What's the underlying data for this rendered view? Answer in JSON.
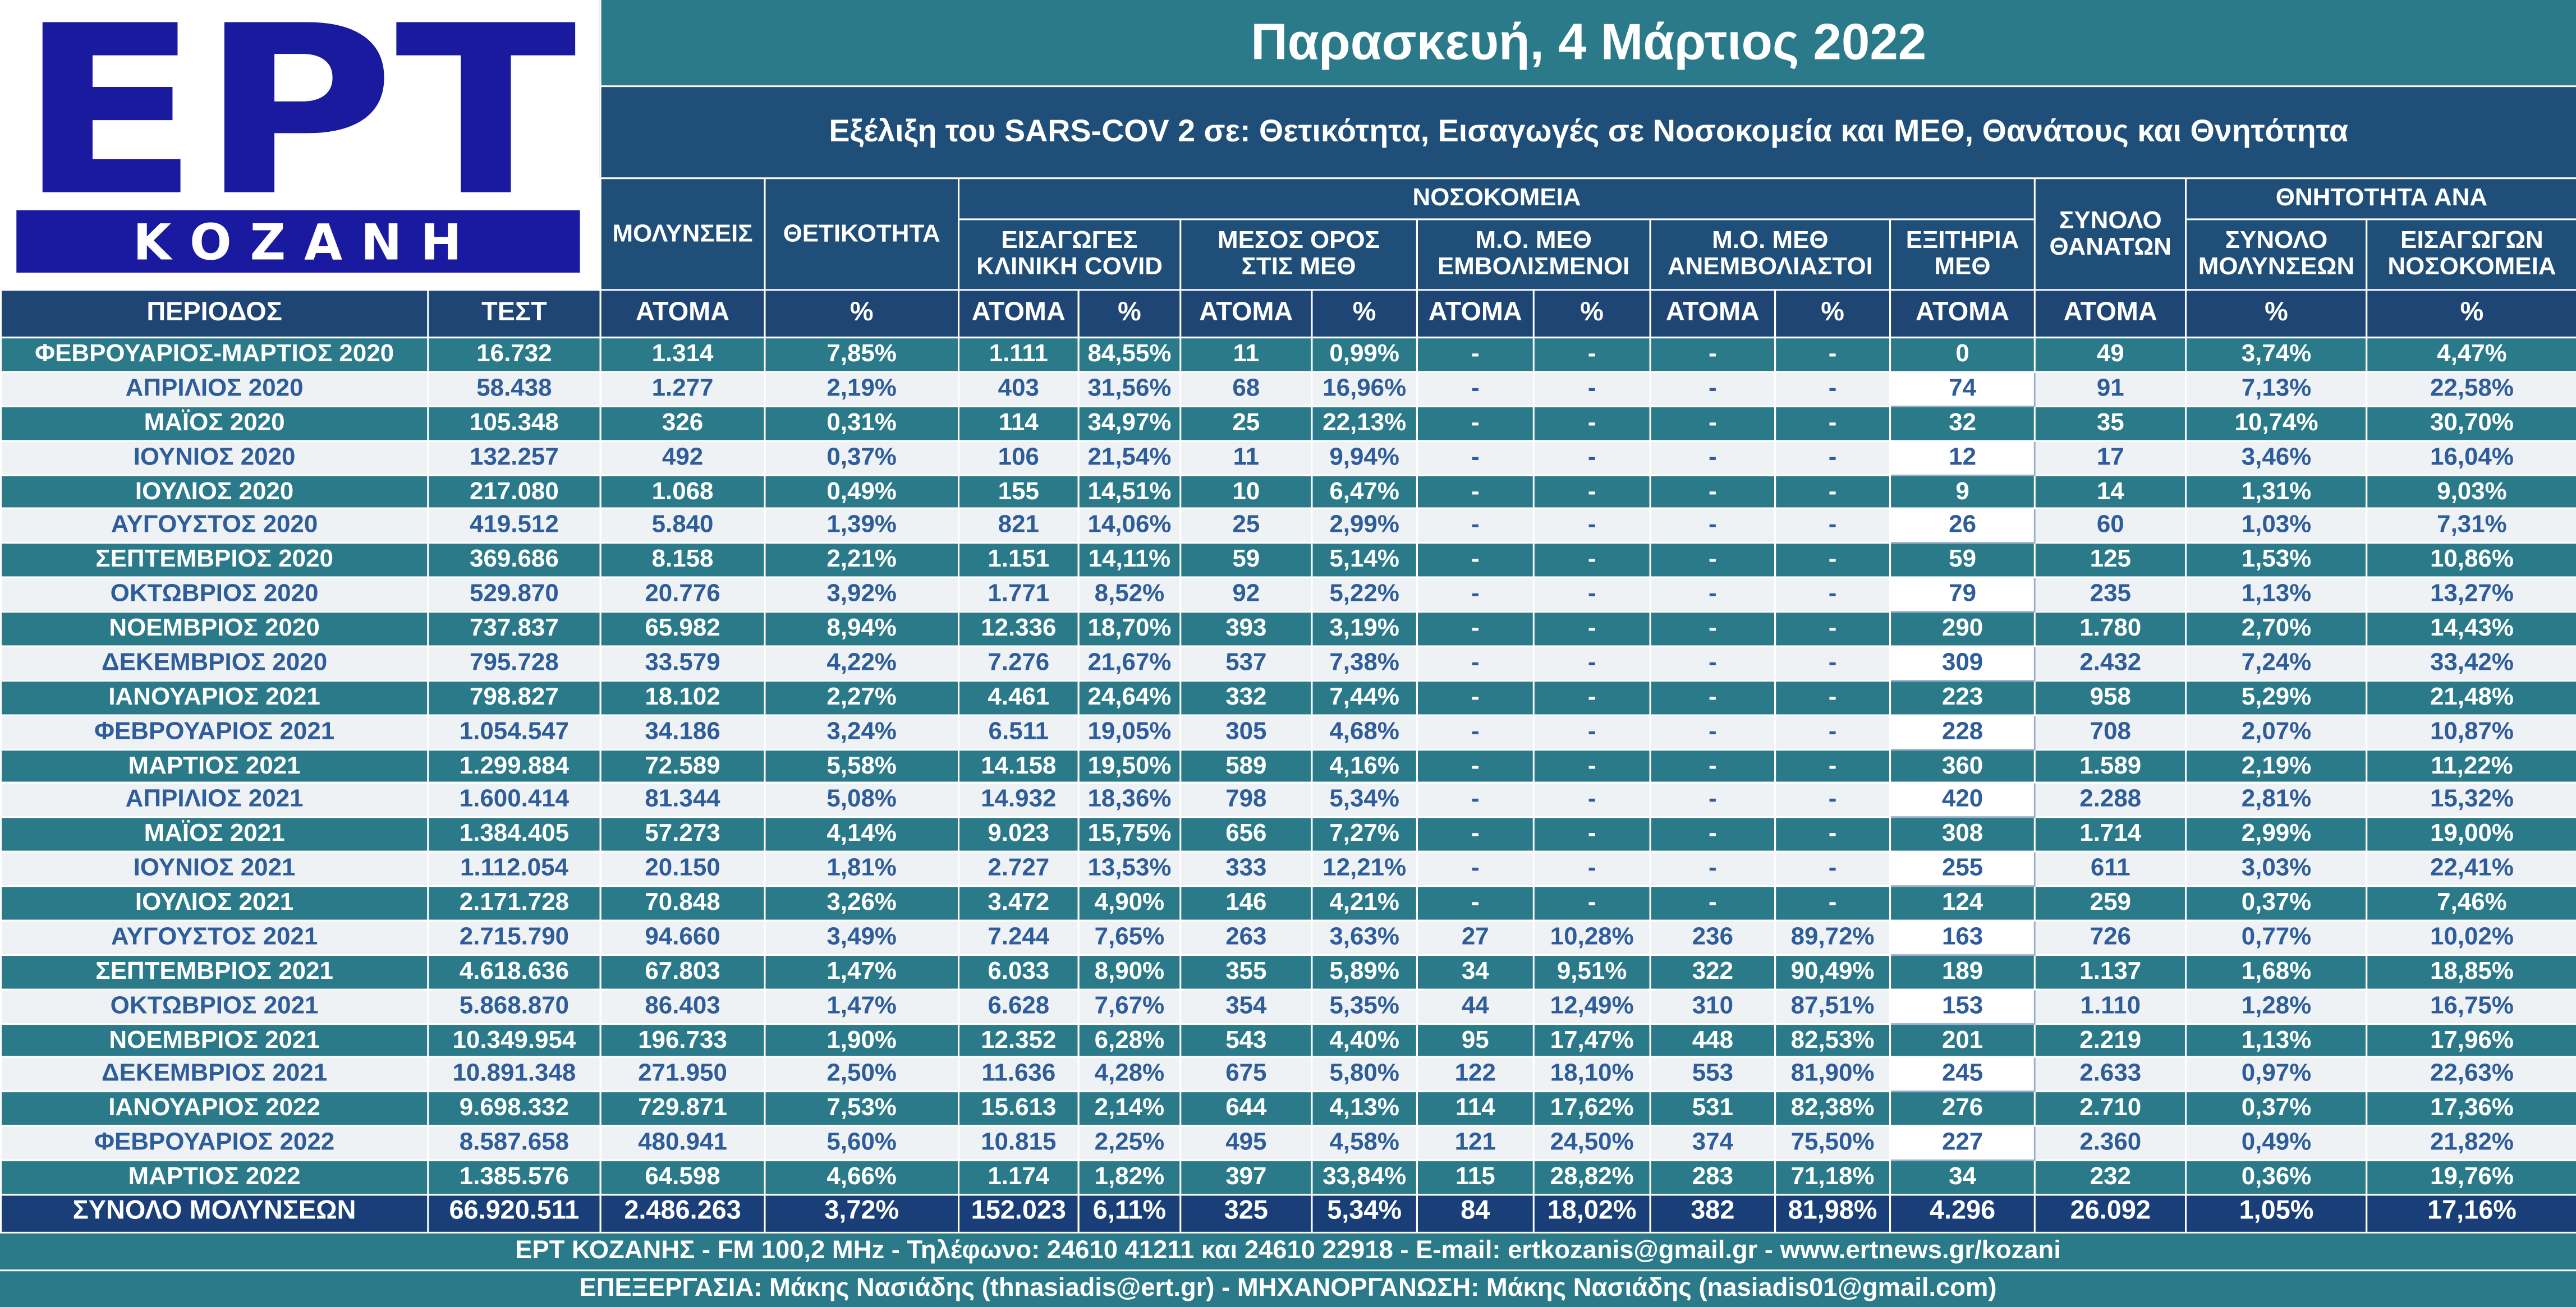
{
  "logo": {
    "name": "ΕΡΤ",
    "city": "ΚΟΖΑΝΗ"
  },
  "header": {
    "title": "Παρασκευή, 4 Μάρτιος 2022",
    "subtitle": "Εξέλιξη του SARS-COV 2 σε: Θετικότητα, Εισαγωγές σε Νοσοκομεία και ΜΕΘ, Θανάτους και Θνητότητα"
  },
  "table": {
    "group_row": [
      [
        "ΜΟΛΥΝΣΕΙΣ"
      ],
      [
        "ΘΕΤΙΚΟΤΗΤΑ"
      ],
      [
        "ΝΟΣΟΚΟΜΕΙΑ"
      ],
      [
        "ΣΥΝΟΛΟ",
        "ΘΑΝΑΤΩΝ"
      ],
      [
        "ΘΝΗΤΟΤΗΤΑ ΑΝΑ"
      ]
    ],
    "sub_row": [
      [
        "ΕΙΣΑΓΩΓΕΣ",
        "ΚΛΙΝΙΚΗ COVID"
      ],
      [
        "ΜΕΣΟΣ ΟΡΟΣ",
        "ΣΤΙΣ ΜΕΘ"
      ],
      [
        "Μ.Ο. ΜΕΘ",
        "ΕΜΒΟΛΙΣΜΕΝΟΙ"
      ],
      [
        "Μ.Ο. ΜΕΘ",
        "ΑΝΕΜΒΟΛΙΑΣΤΟΙ"
      ],
      [
        "ΕΞΙΤΗΡΙΑ",
        "ΜΕΘ"
      ],
      [
        "ΣΥΝΟΛΟ",
        "ΜΟΛΥΝΣΕΩΝ"
      ],
      [
        "ΕΙΣΑΓΩΓΩΝ",
        "ΝΟΣΟΚΟΜΕΙΑ"
      ]
    ],
    "columns": [
      "ΠΕΡΙΟΔΟΣ",
      "ΤΕΣΤ",
      "ΑΤΟΜΑ",
      "%",
      "ΑΤΟΜΑ",
      "%",
      "ΑΤΟΜΑ",
      "%",
      "ΑΤΟΜΑ",
      "%",
      "ΑΤΟΜΑ",
      "%",
      "ΑΤΟΜΑ",
      "ΑΤΟΜΑ",
      "%",
      "%"
    ],
    "rows": [
      [
        "ΦΕΒΡΟΥΑΡΙΟΣ-ΜΑΡΤΙΟΣ 2020",
        "16.732",
        "1.314",
        "7,85%",
        "1.111",
        "84,55%",
        "11",
        "0,99%",
        "-",
        "-",
        "-",
        "-",
        "0",
        "49",
        "3,74%",
        "4,47%"
      ],
      [
        "ΑΠΡΙΛΙΟΣ 2020",
        "58.438",
        "1.277",
        "2,19%",
        "403",
        "31,56%",
        "68",
        "16,96%",
        "-",
        "-",
        "-",
        "-",
        "74",
        "91",
        "7,13%",
        "22,58%"
      ],
      [
        "ΜΑΪΟΣ 2020",
        "105.348",
        "326",
        "0,31%",
        "114",
        "34,97%",
        "25",
        "22,13%",
        "-",
        "-",
        "-",
        "-",
        "32",
        "35",
        "10,74%",
        "30,70%"
      ],
      [
        "ΙΟΥΝΙΟΣ 2020",
        "132.257",
        "492",
        "0,37%",
        "106",
        "21,54%",
        "11",
        "9,94%",
        "-",
        "-",
        "-",
        "-",
        "12",
        "17",
        "3,46%",
        "16,04%"
      ],
      [
        "ΙΟΥΛΙΟΣ 2020",
        "217.080",
        "1.068",
        "0,49%",
        "155",
        "14,51%",
        "10",
        "6,47%",
        "-",
        "-",
        "-",
        "-",
        "9",
        "14",
        "1,31%",
        "9,03%"
      ],
      [
        "ΑΥΓΟΥΣΤΟΣ 2020",
        "419.512",
        "5.840",
        "1,39%",
        "821",
        "14,06%",
        "25",
        "2,99%",
        "-",
        "-",
        "-",
        "-",
        "26",
        "60",
        "1,03%",
        "7,31%"
      ],
      [
        "ΣΕΠΤΕΜΒΡΙΟΣ 2020",
        "369.686",
        "8.158",
        "2,21%",
        "1.151",
        "14,11%",
        "59",
        "5,14%",
        "-",
        "-",
        "-",
        "-",
        "59",
        "125",
        "1,53%",
        "10,86%"
      ],
      [
        "ΟΚΤΩΒΡΙΟΣ 2020",
        "529.870",
        "20.776",
        "3,92%",
        "1.771",
        "8,52%",
        "92",
        "5,22%",
        "-",
        "-",
        "-",
        "-",
        "79",
        "235",
        "1,13%",
        "13,27%"
      ],
      [
        "ΝΟΕΜΒΡΙΟΣ 2020",
        "737.837",
        "65.982",
        "8,94%",
        "12.336",
        "18,70%",
        "393",
        "3,19%",
        "-",
        "-",
        "-",
        "-",
        "290",
        "1.780",
        "2,70%",
        "14,43%"
      ],
      [
        "ΔΕΚΕΜΒΡΙΟΣ 2020",
        "795.728",
        "33.579",
        "4,22%",
        "7.276",
        "21,67%",
        "537",
        "7,38%",
        "-",
        "-",
        "-",
        "-",
        "309",
        "2.432",
        "7,24%",
        "33,42%"
      ],
      [
        "ΙΑΝΟΥΑΡΙΟΣ 2021",
        "798.827",
        "18.102",
        "2,27%",
        "4.461",
        "24,64%",
        "332",
        "7,44%",
        "-",
        "-",
        "-",
        "-",
        "223",
        "958",
        "5,29%",
        "21,48%"
      ],
      [
        "ΦΕΒΡΟΥΑΡΙΟΣ 2021",
        "1.054.547",
        "34.186",
        "3,24%",
        "6.511",
        "19,05%",
        "305",
        "4,68%",
        "-",
        "-",
        "-",
        "-",
        "228",
        "708",
        "2,07%",
        "10,87%"
      ],
      [
        "ΜΑΡΤΙΟΣ 2021",
        "1.299.884",
        "72.589",
        "5,58%",
        "14.158",
        "19,50%",
        "589",
        "4,16%",
        "-",
        "-",
        "-",
        "-",
        "360",
        "1.589",
        "2,19%",
        "11,22%"
      ],
      [
        "ΑΠΡΙΛΙΟΣ 2021",
        "1.600.414",
        "81.344",
        "5,08%",
        "14.932",
        "18,36%",
        "798",
        "5,34%",
        "-",
        "-",
        "-",
        "-",
        "420",
        "2.288",
        "2,81%",
        "15,32%"
      ],
      [
        "ΜΑΪΟΣ 2021",
        "1.384.405",
        "57.273",
        "4,14%",
        "9.023",
        "15,75%",
        "656",
        "7,27%",
        "-",
        "-",
        "-",
        "-",
        "308",
        "1.714",
        "2,99%",
        "19,00%"
      ],
      [
        "ΙΟΥΝΙΟΣ 2021",
        "1.112.054",
        "20.150",
        "1,81%",
        "2.727",
        "13,53%",
        "333",
        "12,21%",
        "-",
        "-",
        "-",
        "-",
        "255",
        "611",
        "3,03%",
        "22,41%"
      ],
      [
        "ΙΟΥΛΙΟΣ 2021",
        "2.171.728",
        "70.848",
        "3,26%",
        "3.472",
        "4,90%",
        "146",
        "4,21%",
        "-",
        "-",
        "-",
        "-",
        "124",
        "259",
        "0,37%",
        "7,46%"
      ],
      [
        "ΑΥΓΟΥΣΤΟΣ 2021",
        "2.715.790",
        "94.660",
        "3,49%",
        "7.244",
        "7,65%",
        "263",
        "3,63%",
        "27",
        "10,28%",
        "236",
        "89,72%",
        "163",
        "726",
        "0,77%",
        "10,02%"
      ],
      [
        "ΣΕΠΤΕΜΒΡΙΟΣ 2021",
        "4.618.636",
        "67.803",
        "1,47%",
        "6.033",
        "8,90%",
        "355",
        "5,89%",
        "34",
        "9,51%",
        "322",
        "90,49%",
        "189",
        "1.137",
        "1,68%",
        "18,85%"
      ],
      [
        "ΟΚΤΩΒΡΙΟΣ 2021",
        "5.868.870",
        "86.403",
        "1,47%",
        "6.628",
        "7,67%",
        "354",
        "5,35%",
        "44",
        "12,49%",
        "310",
        "87,51%",
        "153",
        "1.110",
        "1,28%",
        "16,75%"
      ],
      [
        "ΝΟΕΜΒΡΙΟΣ 2021",
        "10.349.954",
        "196.733",
        "1,90%",
        "12.352",
        "6,28%",
        "543",
        "4,40%",
        "95",
        "17,47%",
        "448",
        "82,53%",
        "201",
        "2.219",
        "1,13%",
        "17,96%"
      ],
      [
        "ΔΕΚΕΜΒΡΙΟΣ 2021",
        "10.891.348",
        "271.950",
        "2,50%",
        "11.636",
        "4,28%",
        "675",
        "5,80%",
        "122",
        "18,10%",
        "553",
        "81,90%",
        "245",
        "2.633",
        "0,97%",
        "22,63%"
      ],
      [
        "ΙΑΝΟΥΑΡΙΟΣ 2022",
        "9.698.332",
        "729.871",
        "7,53%",
        "15.613",
        "2,14%",
        "644",
        "4,13%",
        "114",
        "17,62%",
        "531",
        "82,38%",
        "276",
        "2.710",
        "0,37%",
        "17,36%"
      ],
      [
        "ΦΕΒΡΟΥΑΡΙΟΣ 2022",
        "8.587.658",
        "480.941",
        "5,60%",
        "10.815",
        "2,25%",
        "495",
        "4,58%",
        "121",
        "24,50%",
        "374",
        "75,50%",
        "227",
        "2.360",
        "0,49%",
        "21,82%"
      ],
      [
        "ΜΑΡΤΙΟΣ 2022",
        "1.385.576",
        "64.598",
        "4,66%",
        "1.174",
        "1,82%",
        "397",
        "33,84%",
        "115",
        "28,82%",
        "283",
        "71,18%",
        "34",
        "232",
        "0,36%",
        "19,76%"
      ]
    ],
    "total": [
      "ΣΥΝΟΛΟ ΜΟΛΥΝΣΕΩΝ",
      "66.920.511",
      "2.486.263",
      "3,72%",
      "152.023",
      "6,11%",
      "325",
      "5,34%",
      "84",
      "18,02%",
      "382",
      "81,98%",
      "4.296",
      "26.092",
      "1,05%",
      "17,16%"
    ]
  },
  "footer": [
    "ΕΡΤ ΚΟΖΑΝΗΣ - FM 100,2 MHz - Τηλέφωνο:  24610 41211 και 24610 22918 - E-mail: ertkozanis@gmail.gr - www.ertnews.gr/kozani",
    "ΕΠΕΞΕΡΓΑΣΙΑ: Μάκης Νασιάδης (thnasiadis@ert.gr) - ΜΗΧΑΝΟΡΓΑΝΩΣΗ: Μάκης Νασιάδης (nasiadis01@gmail.com)"
  ]
}
